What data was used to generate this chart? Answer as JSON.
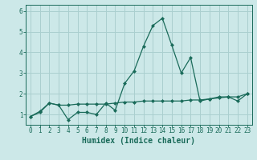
{
  "title": "",
  "xlabel": "Humidex (Indice chaleur)",
  "ylabel": "",
  "background_color": "#cce8e8",
  "grid_color": "#aacfcf",
  "line_color": "#1a6b5a",
  "x_values": [
    0,
    1,
    2,
    3,
    4,
    5,
    6,
    7,
    8,
    9,
    10,
    11,
    12,
    13,
    14,
    15,
    16,
    17,
    18,
    19,
    20,
    21,
    22,
    23
  ],
  "line1_y": [
    0.9,
    1.15,
    1.55,
    1.45,
    0.75,
    1.1,
    1.1,
    1.0,
    1.55,
    1.2,
    2.5,
    3.1,
    4.3,
    5.3,
    5.65,
    4.35,
    3.0,
    3.75,
    1.65,
    1.75,
    1.85,
    1.85,
    1.65,
    2.0
  ],
  "line2_y": [
    0.9,
    1.1,
    1.55,
    1.45,
    1.45,
    1.5,
    1.5,
    1.5,
    1.5,
    1.55,
    1.6,
    1.6,
    1.65,
    1.65,
    1.65,
    1.65,
    1.65,
    1.7,
    1.7,
    1.75,
    1.8,
    1.85,
    1.85,
    2.0
  ],
  "ylim": [
    0.5,
    6.3
  ],
  "xlim": [
    -0.5,
    23.5
  ],
  "yticks": [
    1,
    2,
    3,
    4,
    5,
    6
  ],
  "xticks": [
    0,
    1,
    2,
    3,
    4,
    5,
    6,
    7,
    8,
    9,
    10,
    11,
    12,
    13,
    14,
    15,
    16,
    17,
    18,
    19,
    20,
    21,
    22,
    23
  ],
  "tick_fontsize": 5.5,
  "xlabel_fontsize": 7,
  "marker": "D",
  "marker_size": 2.0,
  "linewidth": 0.9
}
